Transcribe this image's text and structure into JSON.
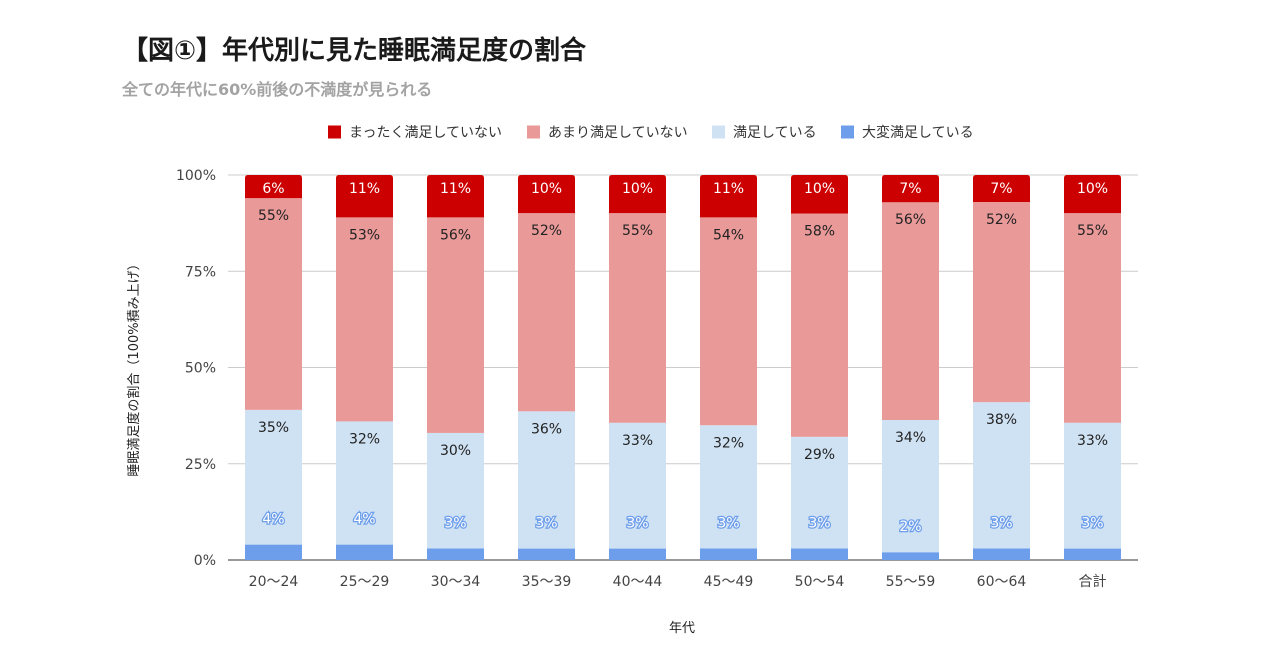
{
  "title": "【図①】年代別に見た睡眠満足度の割合",
  "subtitle": "全ての年代に60%前後の不満度が見られる",
  "chart_data": {
    "type": "bar",
    "stacked": true,
    "categories": [
      "20〜24",
      "25〜29",
      "30〜34",
      "35〜39",
      "40〜44",
      "45〜49",
      "50〜54",
      "55〜59",
      "60〜64",
      "合計"
    ],
    "series": [
      {
        "name": "大変満足している",
        "color": "#6d9eeb",
        "values": [
          4,
          4,
          3,
          3,
          3,
          3,
          3,
          2,
          3,
          3
        ],
        "labels": [
          "4%",
          "4%",
          "3%",
          "3%",
          "3%",
          "3%",
          "3%",
          "2%",
          "3%",
          "3%"
        ]
      },
      {
        "name": "満足している",
        "color": "#cfe2f3",
        "values": [
          35,
          32,
          30,
          36,
          33,
          32,
          29,
          34,
          38,
          33
        ],
        "labels": [
          "35%",
          "32%",
          "30%",
          "36%",
          "33%",
          "32%",
          "29%",
          "34%",
          "38%",
          "33%"
        ]
      },
      {
        "name": "あまり満足していない",
        "color": "#ea9999",
        "values": [
          55,
          53,
          56,
          52,
          55,
          54,
          58,
          56,
          52,
          55
        ],
        "labels": [
          "55%",
          "53%",
          "56%",
          "52%",
          "55%",
          "54%",
          "58%",
          "56%",
          "52%",
          "55%"
        ]
      },
      {
        "name": "まったく満足していない",
        "color": "#cc0000",
        "values": [
          6,
          11,
          11,
          10,
          10,
          11,
          10,
          7,
          7,
          10
        ],
        "labels": [
          "6%",
          "11%",
          "11%",
          "10%",
          "10%",
          "11%",
          "10%",
          "7%",
          "7%",
          "10%"
        ]
      }
    ],
    "legend_order": [
      "まったく満足していない",
      "あまり満足していない",
      "満足している",
      "大変満足している"
    ],
    "legend_position": "top",
    "xlabel": "年代",
    "ylabel": "睡眠満足度の割合（100%積み上げ）",
    "yticks": [
      "0%",
      "25%",
      "50%",
      "75%",
      "100%"
    ],
    "ylim": [
      0,
      100
    ],
    "grid": true
  }
}
